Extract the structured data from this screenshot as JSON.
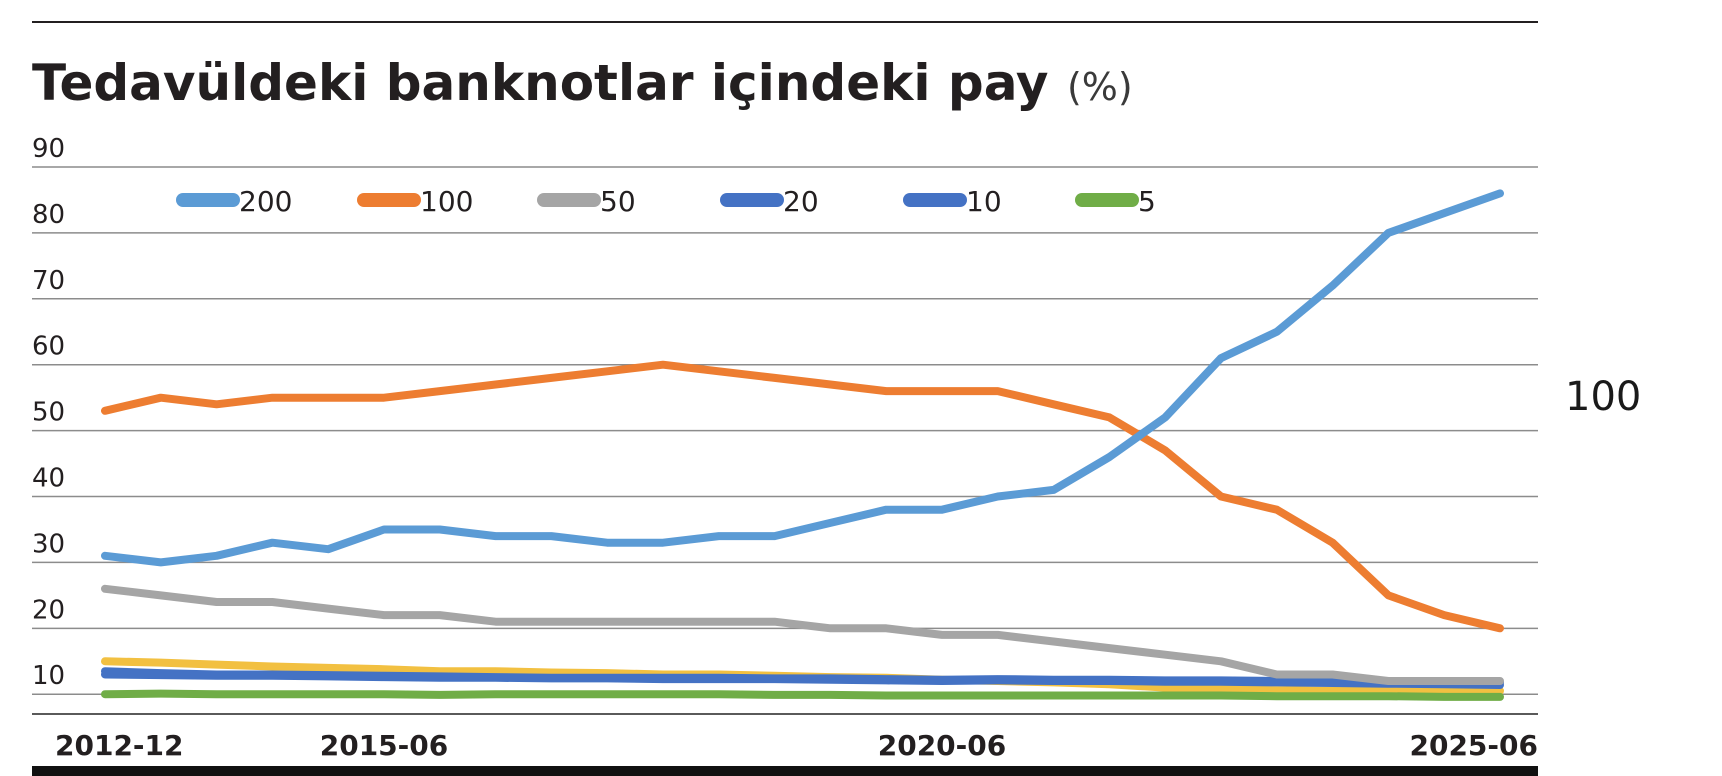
{
  "chart_data": {
    "type": "line",
    "title": "Tedavüldeki banknotlar içindeki pay",
    "title_unit": "(%)",
    "xlabel": "",
    "ylabel": "",
    "ylim": [
      7,
      90
    ],
    "yticks": [
      90,
      80,
      70,
      60,
      50,
      40,
      30,
      20,
      10
    ],
    "xtick_labels": [
      "2012-12",
      "2015-06",
      "2020-06",
      "2025-06"
    ],
    "x": [
      "2012-12",
      "2013-06",
      "2013-12",
      "2014-06",
      "2014-12",
      "2015-06",
      "2015-12",
      "2016-06",
      "2016-12",
      "2017-06",
      "2017-12",
      "2018-06",
      "2018-12",
      "2019-06",
      "2019-12",
      "2020-06",
      "2020-12",
      "2021-06",
      "2021-12",
      "2022-06",
      "2022-12",
      "2023-06",
      "2023-12",
      "2024-06",
      "2024-12",
      "2025-06"
    ],
    "grid": true,
    "legend_position": "top-left",
    "series": [
      {
        "name": "200",
        "color": "#5b9bd5",
        "values": [
          31,
          30,
          31,
          33,
          32,
          35,
          35,
          34,
          34,
          33,
          33,
          34,
          34,
          36,
          38,
          38,
          40,
          41,
          46,
          52,
          61,
          65,
          72,
          80,
          83,
          86
        ]
      },
      {
        "name": "100",
        "color": "#ed7d31",
        "values": [
          53,
          55,
          54,
          55,
          55,
          55,
          56,
          57,
          58,
          59,
          60,
          59,
          58,
          57,
          56,
          56,
          56,
          54,
          52,
          47,
          40,
          38,
          33,
          25,
          22,
          20
        ]
      },
      {
        "name": "50",
        "color": "#a5a5a5",
        "values": [
          26,
          25,
          24,
          24,
          23,
          22,
          22,
          21,
          21,
          21,
          21,
          21,
          21,
          20,
          20,
          19,
          19,
          18,
          17,
          16,
          15,
          13,
          13,
          12,
          12,
          12
        ]
      },
      {
        "name": "20",
        "color": "#4472c4",
        "values": [
          13.5,
          13.2,
          13,
          13,
          12.9,
          12.8,
          12.7,
          12.6,
          12.5,
          12.5,
          12.5,
          12.5,
          12.4,
          12.4,
          12.3,
          12.2,
          12.3,
          12.2,
          12.2,
          12.1,
          12.1,
          12,
          11.9,
          11.9,
          11.8,
          11.8
        ]
      },
      {
        "name": "10",
        "color": "#4472c4",
        "values": [
          13,
          12.9,
          12.8,
          12.8,
          12.7,
          12.6,
          12.5,
          12.5,
          12.4,
          12.4,
          12.3,
          12.3,
          12.3,
          12.2,
          12.1,
          12,
          12.1,
          12,
          12,
          11.9,
          11.9,
          11.8,
          11.7,
          11.6,
          11.5,
          11.4
        ]
      },
      {
        "name": "5",
        "color": "#70ad47",
        "values": [
          10,
          10.1,
          10,
          10,
          10,
          10,
          9.9,
          10,
          10,
          10,
          10,
          10,
          9.9,
          9.9,
          9.8,
          9.8,
          9.8,
          9.8,
          9.8,
          9.8,
          9.8,
          9.7,
          9.7,
          9.7,
          9.6,
          9.6
        ]
      },
      {
        "color": "#f2c041",
        "values": [
          15,
          14.8,
          14.5,
          14.2,
          14,
          13.8,
          13.5,
          13.5,
          13.3,
          13.2,
          13,
          13,
          12.8,
          12.6,
          12.5,
          12.2,
          12,
          11.8,
          11.5,
          11,
          10.8,
          10.6,
          10.5,
          10.5,
          10.4,
          10.5
        ]
      }
    ]
  },
  "side_label": "100",
  "colors": {
    "grid": "#8c8c8c",
    "axis": "#000000",
    "text": "#231f20"
  }
}
